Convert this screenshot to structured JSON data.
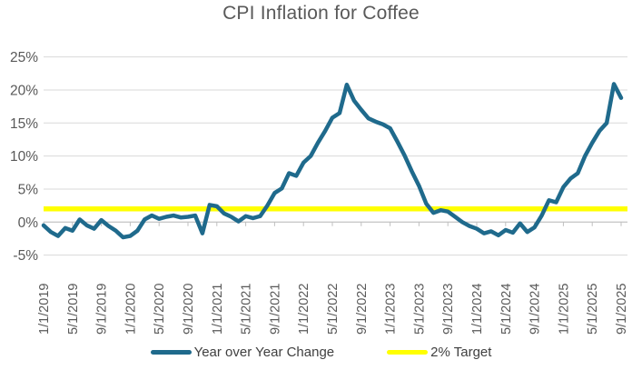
{
  "title": "CPI Inflation for Coffee",
  "colors": {
    "series_line": "#1F6A8C",
    "target_line": "#FFFF00",
    "gridline": "#D9D9D9",
    "axis_line": "#BFBFBF",
    "axis_label": "#595959",
    "title_text": "#595959",
    "legend_text": "#404040",
    "background": "#FFFFFF"
  },
  "legend": {
    "series_label": "Year over Year Change",
    "target_label": "2% Target"
  },
  "chart_data": {
    "type": "line",
    "title": "CPI Inflation for Coffee",
    "xlabel": "",
    "ylabel": "",
    "grid": true,
    "legend_position": "bottom",
    "ylim": [
      -5,
      25
    ],
    "ytick_step": 5,
    "y_tick_labels": [
      "25%",
      "20%",
      "15%",
      "10%",
      "5%",
      "0%",
      "-5%"
    ],
    "x_start": "1/1/2019",
    "x_end": "9/1/2025",
    "x_frequency": "monthly",
    "x_tick_labels": [
      "1/1/2019",
      "5/1/2019",
      "9/1/2019",
      "1/1/2020",
      "5/1/2020",
      "9/1/2020",
      "1/1/2021",
      "5/1/2021",
      "9/1/2021",
      "1/1/2022",
      "5/1/2022",
      "9/1/2022",
      "1/1/2023",
      "5/1/2023",
      "9/1/2023",
      "1/1/2024",
      "5/1/2024",
      "9/1/2024",
      "1/1/2025",
      "5/1/2025",
      "9/1/2025"
    ],
    "x_label_interval_months": 4,
    "series": [
      {
        "name": "Year over Year Change",
        "color": "#1F6A8C",
        "unit": "percent",
        "values": [
          -0.5,
          -1.5,
          -2.1,
          -0.9,
          -1.3,
          0.4,
          -0.5,
          -1.0,
          0.3,
          -0.6,
          -1.3,
          -2.3,
          -2.1,
          -1.3,
          0.4,
          1.0,
          0.5,
          0.8,
          1.0,
          0.7,
          0.8,
          1.0,
          -1.7,
          2.6,
          2.4,
          1.3,
          0.8,
          0.1,
          0.9,
          0.6,
          0.9,
          2.5,
          4.4,
          5.1,
          7.4,
          7.0,
          9.0,
          10.0,
          12.0,
          13.8,
          15.8,
          16.5,
          20.8,
          18.4,
          17.0,
          15.7,
          15.2,
          14.8,
          14.2,
          12.2,
          10.1,
          7.7,
          5.5,
          2.8,
          1.4,
          1.8,
          1.6,
          0.8,
          0.0,
          -0.6,
          -1.0,
          -1.7,
          -1.4,
          -2.0,
          -1.2,
          -1.6,
          -0.2,
          -1.5,
          -0.8,
          1.0,
          3.3,
          3.0,
          5.3,
          6.6,
          7.4,
          10.0,
          12.0,
          13.8,
          15.0,
          20.9,
          18.8
        ]
      },
      {
        "name": "2% Target",
        "color": "#FFFF00",
        "unit": "percent",
        "constant_value": 2
      }
    ]
  }
}
